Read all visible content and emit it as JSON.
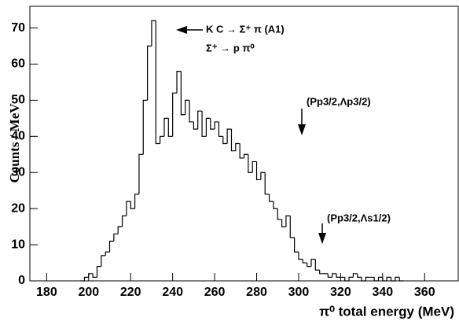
{
  "chart_data": {
    "type": "histogram",
    "x_label": "π⁰ total energy (MeV)",
    "y_label": "Counts / MeV",
    "annotations": [
      "K C → Σ⁺ π (A1)",
      "Σ⁺ → p π⁰",
      "(Pp3/2,Λp3/2)",
      "(Pp3/2,Λs1/2)"
    ],
    "color": "#000000",
    "bins": [
      196,
      198,
      200,
      202,
      204,
      206,
      208,
      210,
      212,
      214,
      216,
      218,
      220,
      222,
      224,
      226,
      228,
      230,
      232,
      234,
      236,
      238,
      240,
      242,
      244,
      246,
      248,
      250,
      252,
      254,
      256,
      258,
      260,
      262,
      264,
      266,
      268,
      270,
      272,
      274,
      276,
      278,
      280,
      282,
      284,
      286,
      288,
      290,
      292,
      294,
      296,
      298,
      300,
      302,
      304,
      306,
      308,
      310,
      312,
      314,
      316,
      318,
      320,
      322,
      324,
      326,
      328,
      330,
      332,
      334,
      336,
      338,
      340,
      342,
      344,
      346,
      348,
      350
    ],
    "values": [
      0,
      1,
      2,
      1,
      4,
      7,
      8,
      11,
      13,
      15,
      18,
      22,
      20,
      24,
      35,
      50,
      65,
      72,
      38,
      40,
      45,
      40,
      52,
      58,
      46,
      50,
      44,
      42,
      47,
      40,
      45,
      42,
      44,
      40,
      38,
      42,
      36,
      38,
      34,
      35,
      30,
      33,
      28,
      30,
      24,
      22,
      20,
      17,
      15,
      18,
      12,
      8,
      6,
      5,
      4,
      6,
      3,
      2,
      2,
      1,
      2,
      1,
      1,
      0,
      1,
      2,
      1,
      0,
      1,
      1,
      0,
      1,
      0,
      1,
      0,
      1,
      0
    ],
    "xlim": [
      172,
      376
    ],
    "ylim": [
      0,
      76
    ],
    "xticks": [
      180,
      200,
      220,
      240,
      260,
      280,
      300,
      320,
      340,
      360
    ],
    "yticks": [
      0,
      10,
      20,
      30,
      40,
      50,
      60,
      70
    ]
  }
}
